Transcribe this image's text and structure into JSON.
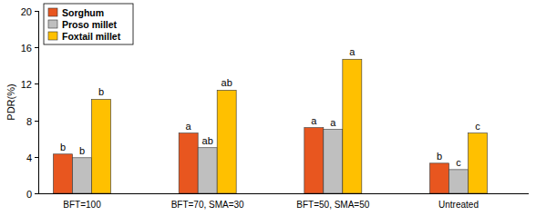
{
  "chart_data": {
    "type": "bar",
    "y_label": "PDR(%)",
    "categories": [
      "BFT=100",
      "BFT=70, SMA=30",
      "BFT=50, SMA=50",
      "Untreated"
    ],
    "series": [
      {
        "name": "Sorghum",
        "color": "#e8561f",
        "values": [
          4.3,
          6.6,
          7.2,
          3.3
        ],
        "letters": [
          "b",
          "a",
          "a",
          "b"
        ]
      },
      {
        "name": "Proso millet",
        "color": "#bfbfbf",
        "values": [
          3.9,
          5.0,
          7.0,
          2.6
        ],
        "letters": [
          "b",
          "ab",
          "a",
          "c"
        ]
      },
      {
        "name": "Foxtail millet",
        "color": "#ffc000",
        "values": [
          10.3,
          11.3,
          14.7,
          6.6
        ],
        "letters": [
          "b",
          "ab",
          "a",
          "c"
        ]
      }
    ],
    "ylim": [
      0,
      20
    ],
    "yticks": [
      0,
      4,
      8,
      12,
      16,
      20
    ],
    "grid": false,
    "legend": "top-left"
  }
}
